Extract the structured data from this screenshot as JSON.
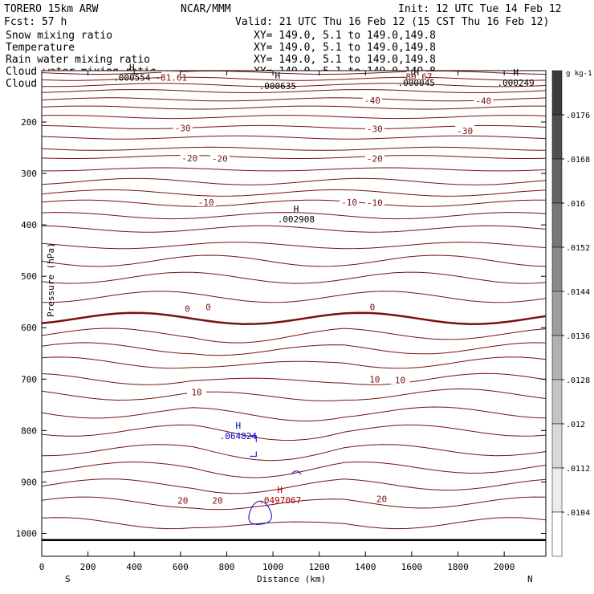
{
  "header": {
    "title": "TORERO  15km ARW",
    "org": "NCAR/MMM",
    "init": "Init: 12 UTC Tue 14 Feb 12",
    "fcst": "Fcst:    57 h",
    "valid": "Valid: 21 UTC Thu 16 Feb 12 (15 CST Thu 16 Feb 12)"
  },
  "legend": [
    {
      "name": "Snow mixing ratio",
      "xy": "XY= 149.0,  5.1 to 149.0,149.8",
      "color": "#000000"
    },
    {
      "name": "Temperature",
      "xy": "XY= 149.0,  5.1 to 149.0,149.8",
      "color": "#cc0000"
    },
    {
      "name": "Rain water mixing ratio",
      "xy": "XY= 149.0,  5.1 to 149.0,149.8",
      "color": "#cc0000"
    },
    {
      "name": "Cloud water mixing ratio",
      "xy": "XY= 149.0,  5.1 to 149.0,149.8",
      "color": "#0000cc"
    },
    {
      "name": "Cloud ice mixing ratio",
      "xy": "XY= 149.0,  5.1 to 149.0,149.8",
      "color": "#000000"
    }
  ],
  "chart_data": {
    "type": "contour",
    "xlabel": "Distance (km)",
    "ylabel": "Pressure (hPa)",
    "xlim": [
      0,
      2180
    ],
    "ylim": [
      100,
      1050
    ],
    "xticks": [
      0,
      200,
      400,
      600,
      800,
      1000,
      1200,
      1400,
      1600,
      1800,
      2000
    ],
    "yticks": [
      200,
      300,
      400,
      500,
      600,
      700,
      800,
      900,
      1000
    ],
    "x_end_labels": {
      "left": "S",
      "right": "N"
    },
    "colorbar": {
      "units": "g kg-1",
      "ticks": [
        ".0104",
        ".0112",
        ".012",
        ".0128",
        ".0136",
        ".0144",
        ".0152",
        ".016",
        ".0168",
        ".0176"
      ]
    },
    "temperature_contour_labels": [
      {
        "text": "-81.61",
        "x": 560,
        "p": 113
      },
      {
        "text": "-80.67",
        "x": 1620,
        "p": 112
      },
      {
        "text": "-40",
        "x": 1430,
        "p": 158
      },
      {
        "text": "-40",
        "x": 1910,
        "p": 159
      },
      {
        "text": "-30",
        "x": 610,
        "p": 212
      },
      {
        "text": "-30",
        "x": 1440,
        "p": 213
      },
      {
        "text": "-30",
        "x": 1830,
        "p": 217
      },
      {
        "text": "-20",
        "x": 640,
        "p": 270
      },
      {
        "text": "-20",
        "x": 770,
        "p": 271
      },
      {
        "text": "-20",
        "x": 1440,
        "p": 271
      },
      {
        "text": "-10",
        "x": 710,
        "p": 356
      },
      {
        "text": "-10",
        "x": 1330,
        "p": 356
      },
      {
        "text": "-10",
        "x": 1440,
        "p": 357
      },
      {
        "text": "0",
        "x": 630,
        "p": 563
      },
      {
        "text": "0",
        "x": 720,
        "p": 560
      },
      {
        "text": "0",
        "x": 1430,
        "p": 560
      },
      {
        "text": "10",
        "x": 670,
        "p": 725
      },
      {
        "text": "10",
        "x": 1440,
        "p": 700
      },
      {
        "text": "10",
        "x": 1550,
        "p": 702
      },
      {
        "text": "20",
        "x": 610,
        "p": 936
      },
      {
        "text": "20",
        "x": 760,
        "p": 936
      },
      {
        "text": "20",
        "x": 1470,
        "p": 933
      }
    ],
    "max_markers": [
      {
        "text": ".000554",
        "x": 390,
        "p": 112,
        "color": "#000000"
      },
      {
        "text": ".000635",
        "x": 1020,
        "p": 128,
        "color": "#000000"
      },
      {
        "text": ".000045",
        "x": 1620,
        "p": 122,
        "color": "#000000"
      },
      {
        "text": ".000249",
        "x": 2050,
        "p": 122,
        "color": "#000000"
      },
      {
        "text": ".002908",
        "x": 1100,
        "p": 387,
        "color": "#000000"
      },
      {
        "text": ".064824",
        "x": 850,
        "p": 809,
        "color": "#0000cc"
      },
      {
        "text": ".0497067",
        "x": 1030,
        "p": 934,
        "color": "#aa0000"
      }
    ],
    "grid": false,
    "legend_position": "top-left"
  }
}
